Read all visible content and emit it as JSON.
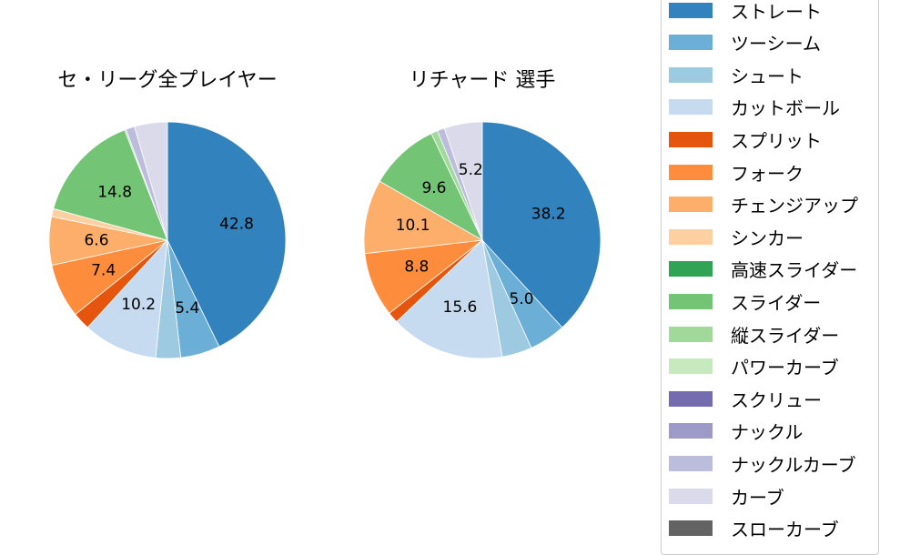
{
  "chart_data": [
    {
      "type": "pie",
      "title": "セ・リーグ全プレイヤー",
      "start_angle": 90,
      "direction": "clockwise",
      "categories": [
        "ストレート",
        "ツーシーム",
        "シュート",
        "カットボール",
        "スプリット",
        "フォーク",
        "チェンジアップ",
        "シンカー",
        "高速スライダー",
        "スライダー",
        "縦スライダー",
        "パワーカーブ",
        "スクリュー",
        "ナックル",
        "ナックルカーブ",
        "カーブ",
        "スローカーブ"
      ],
      "values": [
        42.8,
        5.4,
        3.4,
        10.2,
        2.4,
        7.4,
        6.6,
        1.1,
        0.0,
        14.8,
        0.2,
        0.0,
        0.0,
        0.0,
        1.2,
        4.5,
        0.0
      ],
      "labeled_values": {
        "ストレート": 42.8,
        "カットボール": 10.2,
        "スライダー": 14.8
      }
    },
    {
      "type": "pie",
      "title": "リチャード  選手",
      "start_angle": 90,
      "direction": "clockwise",
      "categories": [
        "ストレート",
        "ツーシーム",
        "シュート",
        "カットボール",
        "スプリット",
        "フォーク",
        "チェンジアップ",
        "シンカー",
        "高速スライダー",
        "スライダー",
        "縦スライダー",
        "パワーカーブ",
        "スクリュー",
        "ナックル",
        "ナックルカーブ",
        "カーブ",
        "スローカーブ"
      ],
      "values": [
        38.2,
        5.0,
        4.1,
        15.6,
        1.5,
        8.8,
        10.1,
        0.0,
        0.0,
        9.6,
        0.9,
        0.0,
        0.0,
        0.0,
        1.0,
        5.2,
        0.0
      ],
      "labeled_values": {
        "ストレート": 38.2,
        "カットボール": 15.6,
        "フォーク": 8.8,
        "チェンジアップ": 10.1,
        "スライダー": 9.6,
        "カーブ": 5.2
      }
    }
  ],
  "titles": {
    "left": "セ・リーグ全プレイヤー",
    "right": "リチャード  選手"
  },
  "label_threshold": 5,
  "legend": {
    "position": "right",
    "items": [
      {
        "label": "ストレート",
        "color": "#3182bd"
      },
      {
        "label": "ツーシーム",
        "color": "#6baed6"
      },
      {
        "label": "シュート",
        "color": "#9ecae1"
      },
      {
        "label": "カットボール",
        "color": "#c6dbef"
      },
      {
        "label": "スプリット",
        "color": "#e6550d"
      },
      {
        "label": "フォーク",
        "color": "#fd8d3c"
      },
      {
        "label": "チェンジアップ",
        "color": "#fdae6b"
      },
      {
        "label": "シンカー",
        "color": "#fdd0a2"
      },
      {
        "label": "高速スライダー",
        "color": "#31a354"
      },
      {
        "label": "スライダー",
        "color": "#74c476"
      },
      {
        "label": "縦スライダー",
        "color": "#a1d99b"
      },
      {
        "label": "パワーカーブ",
        "color": "#c7e9c0"
      },
      {
        "label": "スクリュー",
        "color": "#756bb1"
      },
      {
        "label": "ナックル",
        "color": "#9e9ac8"
      },
      {
        "label": "ナックルカーブ",
        "color": "#bcbddc"
      },
      {
        "label": "カーブ",
        "color": "#dadaeb"
      },
      {
        "label": "スローカーブ",
        "color": "#636363"
      }
    ]
  }
}
